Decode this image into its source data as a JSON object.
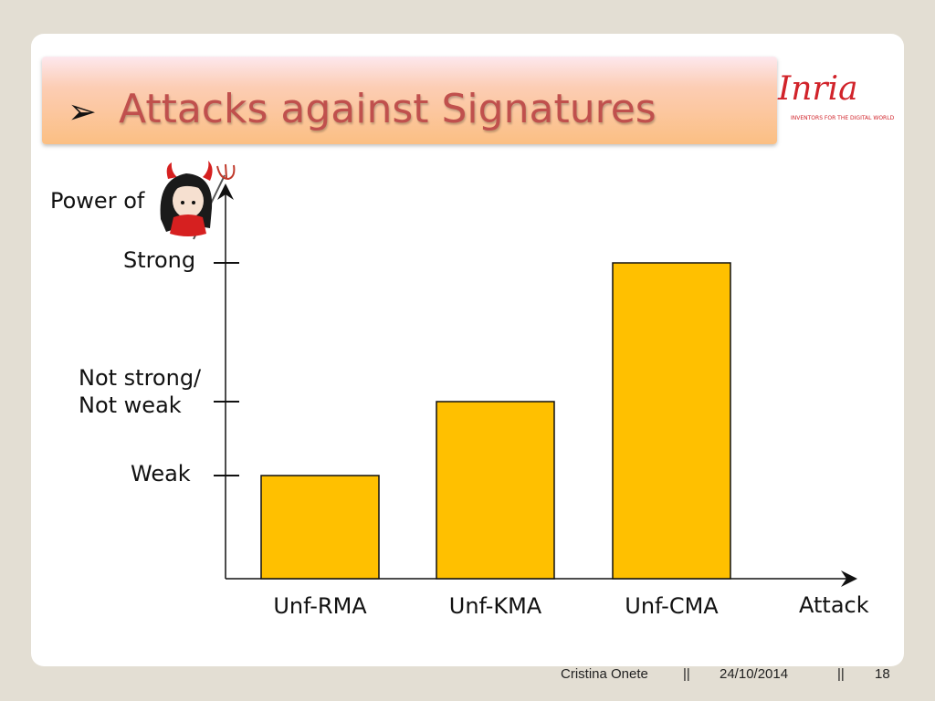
{
  "title": "Attacks against Signatures",
  "title_bullet": "➢",
  "logo": {
    "wordmark": "Inria",
    "tagline": "INVENTORS FOR THE DIGITAL WORLD",
    "color": "#d1232a"
  },
  "chart_data": {
    "type": "bar",
    "ylabel": "Power of",
    "xlabel": "Attack",
    "categories": [
      "Unf-RMA",
      "Unf-KMA",
      "Unf-CMA"
    ],
    "levels": [
      "Weak",
      "Not strong/ Not weak",
      "Strong"
    ],
    "values": [
      1,
      2,
      3
    ],
    "ylim": [
      0,
      3
    ],
    "bar_color": "#ffc000",
    "grid": false
  },
  "ylabel_icon": "devil-girl-icon",
  "footer": {
    "author": "Cristina Onete",
    "sep": "||",
    "date": "24/10/2014",
    "page": "18"
  }
}
